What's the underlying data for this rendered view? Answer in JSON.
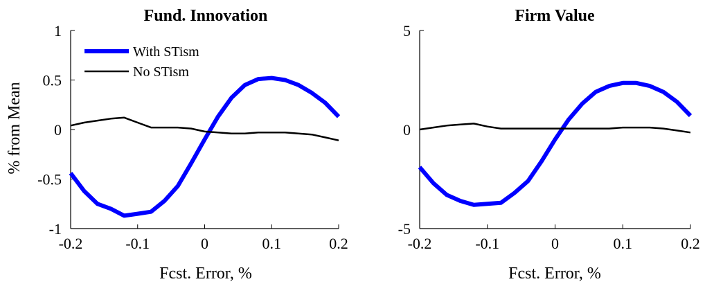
{
  "chart_data": [
    {
      "type": "line",
      "title": "Fund. Innovation",
      "xlabel": "Fcst. Error, %",
      "ylabel": "% from Mean",
      "xlim": [
        -0.2,
        0.2
      ],
      "ylim": [
        -1,
        1
      ],
      "xticks": [
        "-0.2",
        "-0.1",
        "0",
        "0.1",
        "0.2"
      ],
      "yticks": [
        "-1",
        "-0.5",
        "0",
        "0.5",
        "1"
      ],
      "legend": {
        "location": "top-left",
        "box": false
      },
      "grid": false,
      "x": [
        -0.2,
        -0.18,
        -0.16,
        -0.14,
        -0.12,
        -0.1,
        -0.08,
        -0.06,
        -0.04,
        -0.02,
        0.0,
        0.02,
        0.04,
        0.06,
        0.08,
        0.1,
        0.12,
        0.14,
        0.16,
        0.18,
        0.2
      ],
      "series": [
        {
          "name": "With STism",
          "color": "#0000ff",
          "values": [
            -0.44,
            -0.62,
            -0.75,
            -0.8,
            -0.87,
            -0.85,
            -0.83,
            -0.72,
            -0.57,
            -0.34,
            -0.1,
            0.13,
            0.32,
            0.45,
            0.51,
            0.52,
            0.5,
            0.45,
            0.37,
            0.27,
            0.13
          ]
        },
        {
          "name": "No STism",
          "color": "#000000",
          "values": [
            0.04,
            0.07,
            0.09,
            0.11,
            0.12,
            0.07,
            0.02,
            0.02,
            0.02,
            0.01,
            -0.02,
            -0.03,
            -0.04,
            -0.04,
            -0.03,
            -0.03,
            -0.03,
            -0.04,
            -0.05,
            -0.08,
            -0.11
          ]
        }
      ]
    },
    {
      "type": "line",
      "title": "Firm Value",
      "xlabel": "Fcst. Error, %",
      "ylabel": "",
      "xlim": [
        -0.2,
        0.2
      ],
      "ylim": [
        -5,
        5
      ],
      "xticks": [
        "-0.2",
        "-0.1",
        "0",
        "0.1",
        "0.2"
      ],
      "yticks": [
        "-5",
        "0",
        "5"
      ],
      "legend": null,
      "grid": false,
      "x": [
        -0.2,
        -0.18,
        -0.16,
        -0.14,
        -0.12,
        -0.1,
        -0.08,
        -0.06,
        -0.04,
        -0.02,
        0.0,
        0.02,
        0.04,
        0.06,
        0.08,
        0.1,
        0.12,
        0.14,
        0.16,
        0.18,
        0.2
      ],
      "series": [
        {
          "name": "With STism",
          "color": "#0000ff",
          "values": [
            -1.9,
            -2.7,
            -3.3,
            -3.6,
            -3.8,
            -3.75,
            -3.7,
            -3.2,
            -2.6,
            -1.6,
            -0.5,
            0.5,
            1.3,
            1.9,
            2.2,
            2.35,
            2.35,
            2.2,
            1.9,
            1.4,
            0.7
          ]
        },
        {
          "name": "No STism",
          "color": "#000000",
          "values": [
            0.0,
            0.1,
            0.2,
            0.25,
            0.3,
            0.15,
            0.05,
            0.05,
            0.05,
            0.05,
            0.05,
            0.05,
            0.05,
            0.05,
            0.05,
            0.1,
            0.1,
            0.1,
            0.05,
            -0.05,
            -0.15
          ]
        }
      ]
    }
  ]
}
